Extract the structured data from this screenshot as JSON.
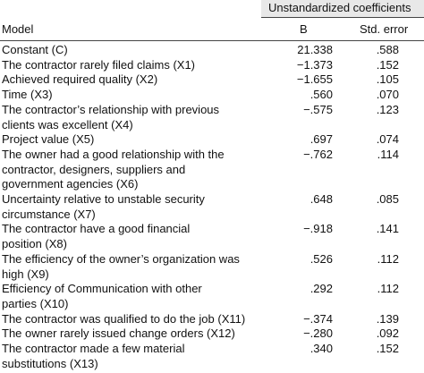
{
  "table": {
    "header": {
      "group": "Unstandardized coefficients",
      "columns": [
        "Model",
        "B",
        "Std. error"
      ]
    },
    "rows": [
      {
        "label": [
          "Constant (C)"
        ],
        "b": "21.338",
        "se": ".588"
      },
      {
        "label": [
          "The contractor rarely filed claims (X1)"
        ],
        "b": "−1.373",
        "se": ".152"
      },
      {
        "label": [
          "Achieved required quality (X2)"
        ],
        "b": "−1.655",
        "se": ".105"
      },
      {
        "label": [
          "Time (X3)"
        ],
        "b": ".560",
        "se": ".070"
      },
      {
        "label": [
          "The contractor’s relationship with previous",
          "clients was excellent (X4)"
        ],
        "b": "−.575",
        "se": ".123"
      },
      {
        "label": [
          "Project value (X5)"
        ],
        "b": ".697",
        "se": ".074"
      },
      {
        "label": [
          "The owner had a good relationship with the",
          "contractor, designers, suppliers and",
          "government agencies (X6)"
        ],
        "b": "−.762",
        "se": ".114"
      },
      {
        "label": [
          "Uncertainty relative to unstable security",
          "circumstance (X7)"
        ],
        "b": ".648",
        "se": ".085"
      },
      {
        "label": [
          "The contractor have a good financial",
          "position (X8)"
        ],
        "b": "−.918",
        "se": ".141"
      },
      {
        "label": [
          "The efficiency of the owner’s organization was",
          "high (X9)"
        ],
        "b": ".526",
        "se": ".112"
      },
      {
        "label": [
          "Efficiency of Communication with other",
          "parties (X10)"
        ],
        "b": ".292",
        "se": ".112"
      },
      {
        "label": [
          "The contractor was qualified to do the job (X11)"
        ],
        "b": "−.374",
        "se": ".139"
      },
      {
        "label": [
          "The owner rarely issued change orders (X12)"
        ],
        "b": "−.280",
        "se": ".092"
      },
      {
        "label": [
          "The contractor made a few material",
          "substitutions (X13)"
        ],
        "b": ".340",
        "se": ".152"
      }
    ]
  }
}
